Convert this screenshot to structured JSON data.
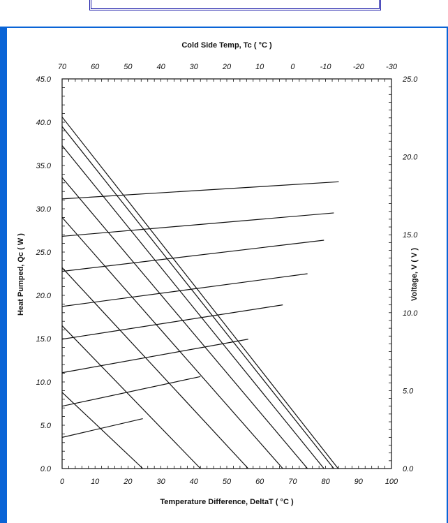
{
  "chart_data": {
    "type": "line",
    "title": "Cold Side Temp, Tc ( °C )",
    "xlabel": "Temperature Difference, DeltaT ( °C )",
    "ylabel": "Heat Pumped, Qc ( W )",
    "y2label": "Voltage, V ( V )",
    "xlim": [
      0,
      100
    ],
    "ylim": [
      0,
      45
    ],
    "y2lim": [
      0,
      25
    ],
    "x_ticks": [
      "0",
      "10",
      "20",
      "30",
      "40",
      "50",
      "60",
      "70",
      "80",
      "90",
      "100"
    ],
    "x2_ticks": [
      "70",
      "60",
      "50",
      "40",
      "30",
      "20",
      "10",
      "0",
      "-10",
      "-20",
      "-30"
    ],
    "y_ticks": [
      "0.0",
      "5.0",
      "10.0",
      "15.0",
      "20.0",
      "25.0",
      "30.0",
      "35.0",
      "40.0",
      "45.0"
    ],
    "y2_ticks": [
      "0.0",
      "5.0",
      "10.0",
      "15.0",
      "20.0",
      "25.0"
    ],
    "qc_lines": [
      {
        "x": [
          0,
          24.5
        ],
        "y": [
          8.8,
          0
        ]
      },
      {
        "x": [
          0,
          42
        ],
        "y": [
          16.5,
          0
        ]
      },
      {
        "x": [
          0,
          56.5
        ],
        "y": [
          23.2,
          0
        ]
      },
      {
        "x": [
          0,
          67
        ],
        "y": [
          29,
          0
        ]
      },
      {
        "x": [
          0,
          74.5
        ],
        "y": [
          33.6,
          0
        ]
      },
      {
        "x": [
          0,
          79.5
        ],
        "y": [
          37.3,
          0
        ]
      },
      {
        "x": [
          0,
          82.5
        ],
        "y": [
          39.5,
          0
        ]
      },
      {
        "x": [
          0,
          83.8
        ],
        "y": [
          40.6,
          0
        ]
      }
    ],
    "voltage_lines": [
      {
        "x": [
          0,
          24.5
        ],
        "y": [
          2.0,
          3.2
        ]
      },
      {
        "x": [
          0,
          42
        ],
        "y": [
          4.0,
          5.9
        ]
      },
      {
        "x": [
          0,
          56.5
        ],
        "y": [
          6.15,
          8.3
        ]
      },
      {
        "x": [
          0,
          67
        ],
        "y": [
          8.3,
          10.5
        ]
      },
      {
        "x": [
          0,
          74.5
        ],
        "y": [
          10.4,
          12.5
        ]
      },
      {
        "x": [
          0,
          79.5
        ],
        "y": [
          12.65,
          14.65
        ]
      },
      {
        "x": [
          0,
          82.5
        ],
        "y": [
          14.9,
          16.4
        ]
      },
      {
        "x": [
          0,
          84
        ],
        "y": [
          17.3,
          18.4
        ]
      }
    ],
    "grid": false,
    "legend": "none"
  }
}
